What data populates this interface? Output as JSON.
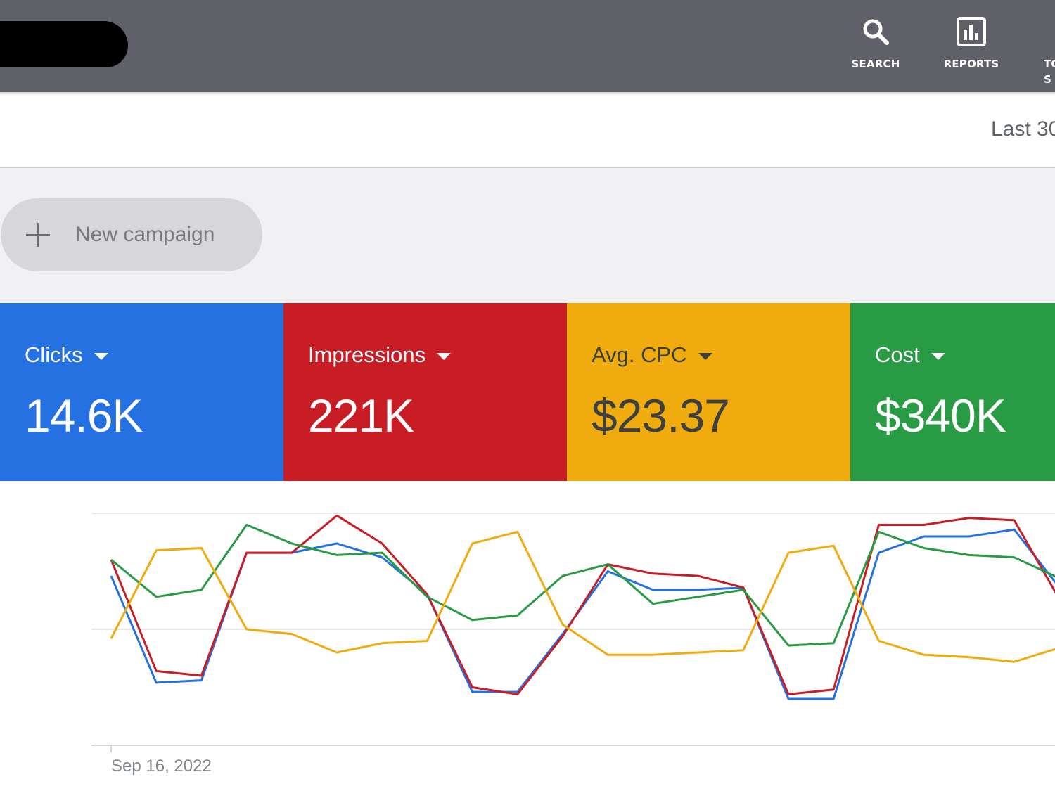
{
  "app_bar": {
    "nav": [
      {
        "label": "SEARCH",
        "icon": "search-icon"
      },
      {
        "label": "REPORTS",
        "icon": "reports-icon"
      },
      {
        "label": "TO S",
        "icon": "tools-icon"
      }
    ]
  },
  "header": {
    "date_range": "Last 30"
  },
  "new_campaign": {
    "label": "New campaign"
  },
  "metrics": [
    {
      "label": "Clicks",
      "value": "14.6K",
      "color": "#2671e2",
      "text_color": "#ffffff"
    },
    {
      "label": "Impressions",
      "value": "221K",
      "color": "#c81d25",
      "text_color": "#ffffff"
    },
    {
      "label": "Avg. CPC",
      "value": "$23.37",
      "color": "#f0ab0e",
      "text_color": "#3c4043"
    },
    {
      "label": "Cost",
      "value": "$340K",
      "color": "#2a9b45",
      "text_color": "#ffffff"
    }
  ],
  "chart_data": {
    "type": "line",
    "x_start_label": "Sep 16, 2022",
    "grid": true,
    "legend": "none",
    "ylim": [
      0,
      100
    ],
    "series": [
      {
        "color": "#2671e2",
        "values": [
          73,
          27,
          28,
          83,
          83,
          87,
          81,
          65,
          23,
          23,
          48,
          75,
          67,
          67,
          68,
          20,
          20,
          83,
          90,
          90,
          93,
          68
        ]
      },
      {
        "color": "#c81d25",
        "values": [
          80,
          32,
          30,
          83,
          83,
          99,
          87,
          65,
          25,
          22,
          47,
          78,
          74,
          73,
          68,
          22,
          24,
          95,
          95,
          98,
          97,
          63
        ]
      },
      {
        "color": "#2a9b45",
        "values": [
          80,
          64,
          67,
          95,
          87,
          82,
          83,
          64,
          54,
          56,
          73,
          78,
          61,
          64,
          67,
          43,
          44,
          92,
          85,
          82,
          81,
          72
        ]
      },
      {
        "color": "#f0ab0e",
        "values": [
          46,
          84,
          85,
          50,
          48,
          40,
          44,
          45,
          87,
          92,
          52,
          39,
          39,
          40,
          41,
          83,
          86,
          45,
          39,
          38,
          36,
          42
        ]
      }
    ]
  }
}
